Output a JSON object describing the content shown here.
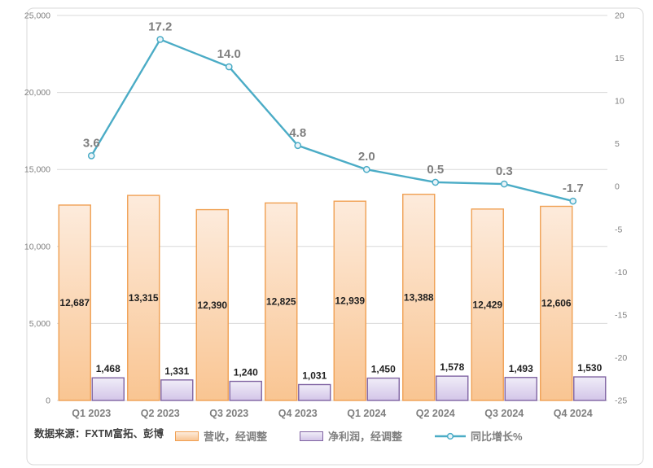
{
  "figure": {
    "source_note": "数据来源：FXTM富拓、彭博"
  },
  "chart_data": {
    "type": "combo (bar + line)",
    "title": "",
    "categories": [
      "Q1 2023",
      "Q2 2023",
      "Q3 2023",
      "Q4 2023",
      "Q1 2024",
      "Q2 2024",
      "Q3 2024",
      "Q4 2024"
    ],
    "series": [
      {
        "id": "revenue",
        "name": "营收，经调整",
        "type": "bar",
        "axis": "left",
        "values": [
          12687,
          13315,
          12390,
          12825,
          12939,
          13388,
          12429,
          12606
        ],
        "labels": [
          "12,687",
          "13,315",
          "12,390",
          "12,825",
          "12,939",
          "13,388",
          "12,429",
          "12,606"
        ],
        "label_position": "center",
        "fill_top": "#FDEBDC",
        "fill_bottom": "#F9C592",
        "border": "#F0A053",
        "label_color": "#1F1F1F"
      },
      {
        "id": "net-profit",
        "name": "净利润，经调整",
        "type": "bar",
        "axis": "left",
        "values": [
          1468,
          1331,
          1240,
          1031,
          1450,
          1578,
          1493,
          1530
        ],
        "labels": [
          "1,468",
          "1,331",
          "1,240",
          "1,031",
          "1,450",
          "1,578",
          "1,493",
          "1,530"
        ],
        "label_position": "above",
        "fill_top": "#F0EDF8",
        "fill_bottom": "#D3C5E8",
        "border": "#8064A2",
        "label_color": "#1F1F1F"
      },
      {
        "id": "yoy-growth",
        "name": "同比增长%",
        "type": "line",
        "axis": "right",
        "values": [
          3.6,
          17.2,
          14.0,
          4.8,
          2.0,
          0.5,
          0.3,
          -1.7
        ],
        "labels": [
          "3.6",
          "17.2",
          "14.0",
          "4.8",
          "2.0",
          "0.5",
          "0.3",
          "-1.7"
        ],
        "color": "#4BACC6",
        "marker_fill": "#EAF4F9",
        "label_color": "#7F7F7F",
        "negative_label_color": "#FF0000"
      }
    ],
    "left_axis": {
      "min": 0,
      "max": 25000,
      "step": 5000,
      "tick_labels": [
        "0",
        "5,000",
        "10,000",
        "15,000",
        "20,000",
        "25,000"
      ]
    },
    "right_axis": {
      "min": -25,
      "max": 20,
      "step": 5,
      "tick_labels": [
        "20",
        "15",
        "10",
        "5",
        "0",
        "-5",
        "-10",
        "-15",
        "-20",
        "-25"
      ]
    },
    "grid": true,
    "legend_position": "bottom",
    "gridline_color": "#D9D9D9",
    "frame_color": "#D9D9D9",
    "axis_label_color": "#7F7F7F"
  }
}
